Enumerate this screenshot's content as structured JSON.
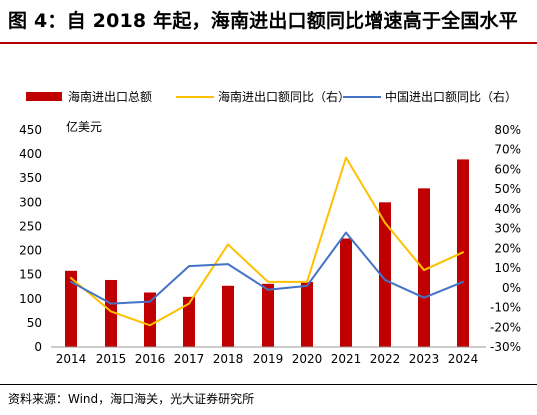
{
  "title": "图 4：自 2018 年起，海南进出口额同比增速高于全国水平",
  "source": "资料来源：Wind，海口海关，光大证券研究所",
  "colors": {
    "bar": "#c00000",
    "hainan_line": "#ffc000",
    "china_line": "#4472c4",
    "rule": "#b40000"
  },
  "chart_data": {
    "type": "bar",
    "categories": [
      "2014",
      "2015",
      "2016",
      "2017",
      "2018",
      "2019",
      "2020",
      "2021",
      "2022",
      "2023",
      "2024"
    ],
    "ylabel": "亿美元",
    "ylim": [
      0,
      450
    ],
    "yticks": [
      0,
      50,
      100,
      150,
      200,
      250,
      300,
      350,
      400,
      450
    ],
    "y2lim": [
      -30,
      80
    ],
    "y2ticks": [
      "80%",
      "70%",
      "60%",
      "50%",
      "40%",
      "30%",
      "20%",
      "10%",
      "0%",
      "-10%",
      "-20%",
      "-30%"
    ],
    "legend_position": "top",
    "grid": false,
    "series": [
      {
        "name": "海南进出口总额",
        "type": "bar",
        "axis": "left",
        "values": [
          158,
          139,
          113,
          104,
          127,
          131,
          135,
          225,
          300,
          329,
          389
        ]
      },
      {
        "name": "海南进出口额同比（右）",
        "type": "line",
        "axis": "right",
        "values": [
          5,
          -12,
          -19,
          -8,
          22,
          3,
          3,
          66,
          33,
          9,
          18
        ]
      },
      {
        "name": "中国进出口额同比（右）",
        "type": "line",
        "axis": "right",
        "values": [
          3,
          -8,
          -7,
          11,
          12,
          -1,
          1,
          28,
          4,
          -5,
          3
        ]
      }
    ]
  }
}
